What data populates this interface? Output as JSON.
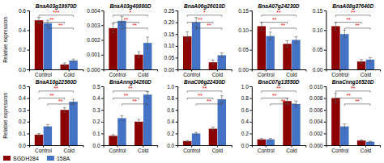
{
  "chart_data": [
    {
      "type": "bar",
      "title": "BnaA03g19970D",
      "ylabel": "Relative expression",
      "categories": [
        "Control",
        "Cold"
      ],
      "series": [
        {
          "name": "SGDH284",
          "color": "#8B0000",
          "values": [
            0.5,
            0.05
          ],
          "errors": [
            0.03,
            0.015
          ]
        },
        {
          "name": "158A",
          "color": "#4472C4",
          "values": [
            0.47,
            0.09
          ],
          "errors": [
            0.03,
            0.015
          ]
        }
      ],
      "ylim": [
        0,
        0.6
      ],
      "yticks": [
        {
          "value": 0,
          "label": "0.0"
        },
        0.2,
        0.4,
        0.6
      ],
      "annotations": [
        "***",
        "**",
        "**"
      ],
      "legend": "lower left"
    },
    {
      "type": "bar",
      "title": "BnaA03g40880D",
      "categories": [
        "Control",
        "Cold"
      ],
      "series": [
        {
          "color": "#8B0000",
          "values": [
            0.0028,
            0.001
          ],
          "errors": [
            0.0003,
            0.0002
          ]
        },
        {
          "color": "#4472C4",
          "values": [
            0.0033,
            0.0018
          ],
          "errors": [
            0.0003,
            0.0004
          ]
        }
      ],
      "ylim": [
        0,
        0.004
      ],
      "yticks": [
        {
          "value": 0,
          "label": "0.000"
        },
        0.001,
        0.002,
        0.003,
        0.004
      ],
      "annotations": [
        "*",
        "**",
        "**"
      ]
    },
    {
      "type": "bar",
      "title": "BnaA06g26010D",
      "categories": [
        "Control",
        "Cold"
      ],
      "series": [
        {
          "color": "#8B0000",
          "values": [
            0.14,
            0.03
          ],
          "errors": [
            0.02,
            0.01
          ]
        },
        {
          "color": "#4472C4",
          "values": [
            0.2,
            0.06
          ],
          "errors": [
            0.02,
            0.01
          ]
        }
      ],
      "ylim": [
        0,
        0.25
      ],
      "yticks": [
        {
          "value": 0,
          "label": "0.00"
        },
        0.05,
        {
          "value": 0.1,
          "label": "0.10"
        },
        0.15,
        {
          "value": 0.2,
          "label": "0.20"
        },
        0.25
      ],
      "annotations": [
        "*",
        "**",
        "**"
      ]
    },
    {
      "type": "bar",
      "title": "BnaA07g24230D",
      "categories": [
        "Control",
        "Cold"
      ],
      "series": [
        {
          "color": "#8B0000",
          "values": [
            0.11,
            0.065
          ],
          "errors": [
            0.01,
            0.008
          ]
        },
        {
          "color": "#4472C4",
          "values": [
            0.085,
            0.075
          ],
          "errors": [
            0.01,
            0.008
          ]
        }
      ],
      "ylim": [
        0,
        0.15
      ],
      "yticks": [
        {
          "value": 0,
          "label": "0.00"
        },
        0.05,
        {
          "value": 0.1,
          "label": "0.10"
        },
        0.15
      ],
      "annotations": [
        "**",
        "**",
        "**"
      ]
    },
    {
      "type": "bar",
      "title": "BnaA08g37640D",
      "categories": [
        "Control",
        "Cold"
      ],
      "series": [
        {
          "color": "#8B0000",
          "values": [
            0.11,
            0.02
          ],
          "errors": [
            0.01,
            0.005
          ]
        },
        {
          "color": "#4472C4",
          "values": [
            0.09,
            0.025
          ],
          "errors": [
            0.01,
            0.005
          ]
        }
      ],
      "ylim": [
        0,
        0.15
      ],
      "yticks": [
        {
          "value": 0,
          "label": "0.00"
        },
        0.05,
        {
          "value": 0.1,
          "label": "0.10"
        },
        0.15
      ],
      "annotations": [
        "**",
        "**",
        "**"
      ]
    },
    {
      "type": "bar",
      "title": "BnaA10g22560D",
      "ylabel": "Relative expression",
      "categories": [
        "Control",
        "Cold"
      ],
      "series": [
        {
          "color": "#8B0000",
          "values": [
            0.09,
            0.3
          ],
          "errors": [
            0.01,
            0.02
          ]
        },
        {
          "color": "#4472C4",
          "values": [
            0.16,
            0.37
          ],
          "errors": [
            0.015,
            0.02
          ]
        }
      ],
      "ylim": [
        0,
        0.5
      ],
      "yticks": [
        {
          "value": 0,
          "label": "0.0"
        },
        0.1,
        0.2,
        0.3,
        0.4,
        0.5
      ],
      "annotations": [
        "**",
        "**",
        "**"
      ]
    },
    {
      "type": "bar",
      "title": "BnaAnng34260D",
      "categories": [
        "Control",
        "Cold"
      ],
      "series": [
        {
          "color": "#8B0000",
          "values": [
            0.08,
            0.2
          ],
          "errors": [
            0.01,
            0.02
          ]
        },
        {
          "color": "#4472C4",
          "values": [
            0.23,
            0.43
          ],
          "errors": [
            0.02,
            0.025
          ]
        }
      ],
      "ylim": [
        0,
        0.5
      ],
      "yticks": [
        {
          "value": 0,
          "label": "0.0"
        },
        0.1,
        0.2,
        0.3,
        0.4,
        0.5
      ],
      "annotations": [
        "**",
        "**",
        "**"
      ]
    },
    {
      "type": "bar",
      "title": "BnaC06g22430D",
      "categories": [
        "Control",
        "Cold"
      ],
      "series": [
        {
          "color": "#8B0000",
          "values": [
            0.07,
            0.28
          ],
          "errors": [
            0.01,
            0.03
          ]
        },
        {
          "color": "#4472C4",
          "values": [
            0.2,
            0.78
          ],
          "errors": [
            0.02,
            0.06
          ]
        }
      ],
      "ylim": [
        0,
        1.0
      ],
      "yticks": [
        {
          "value": 0,
          "label": "0.0"
        },
        0.2,
        0.4,
        0.6,
        0.8,
        {
          "value": 1,
          "label": "1.0"
        }
      ],
      "annotations": [
        "**",
        "**",
        "**"
      ]
    },
    {
      "type": "bar",
      "title": "BnaC07g13550D",
      "categories": [
        "Control",
        "Cold"
      ],
      "series": [
        {
          "color": "#8B0000",
          "values": [
            0.1,
            0.75
          ],
          "errors": [
            0.015,
            0.05
          ]
        },
        {
          "color": "#4472C4",
          "values": [
            0.1,
            0.7
          ],
          "errors": [
            0.015,
            0.05
          ]
        }
      ],
      "ylim": [
        0,
        1.0
      ],
      "yticks": [
        {
          "value": 0,
          "label": "0.0"
        },
        0.2,
        0.4,
        0.6,
        0.8,
        {
          "value": 1,
          "label": "1.0"
        }
      ],
      "annotations": [
        "**",
        "**",
        "**"
      ]
    },
    {
      "type": "bar",
      "title": "BnaCnng16520D",
      "categories": [
        "Control",
        "Cold"
      ],
      "series": [
        {
          "color": "#8B0000",
          "values": [
            0.008,
            0.0008
          ],
          "errors": [
            0.0008,
            0.0001
          ]
        },
        {
          "color": "#4472C4",
          "values": [
            0.0032,
            0.0006
          ],
          "errors": [
            0.0004,
            0.0001
          ]
        }
      ],
      "ylim": [
        0,
        0.01
      ],
      "yticks": [
        {
          "value": 0,
          "label": "0.000"
        },
        0.002,
        0.004,
        0.006,
        0.008,
        {
          "value": 0.01,
          "label": "0.010"
        }
      ],
      "annotations": [
        "**",
        "**",
        "**"
      ]
    }
  ]
}
